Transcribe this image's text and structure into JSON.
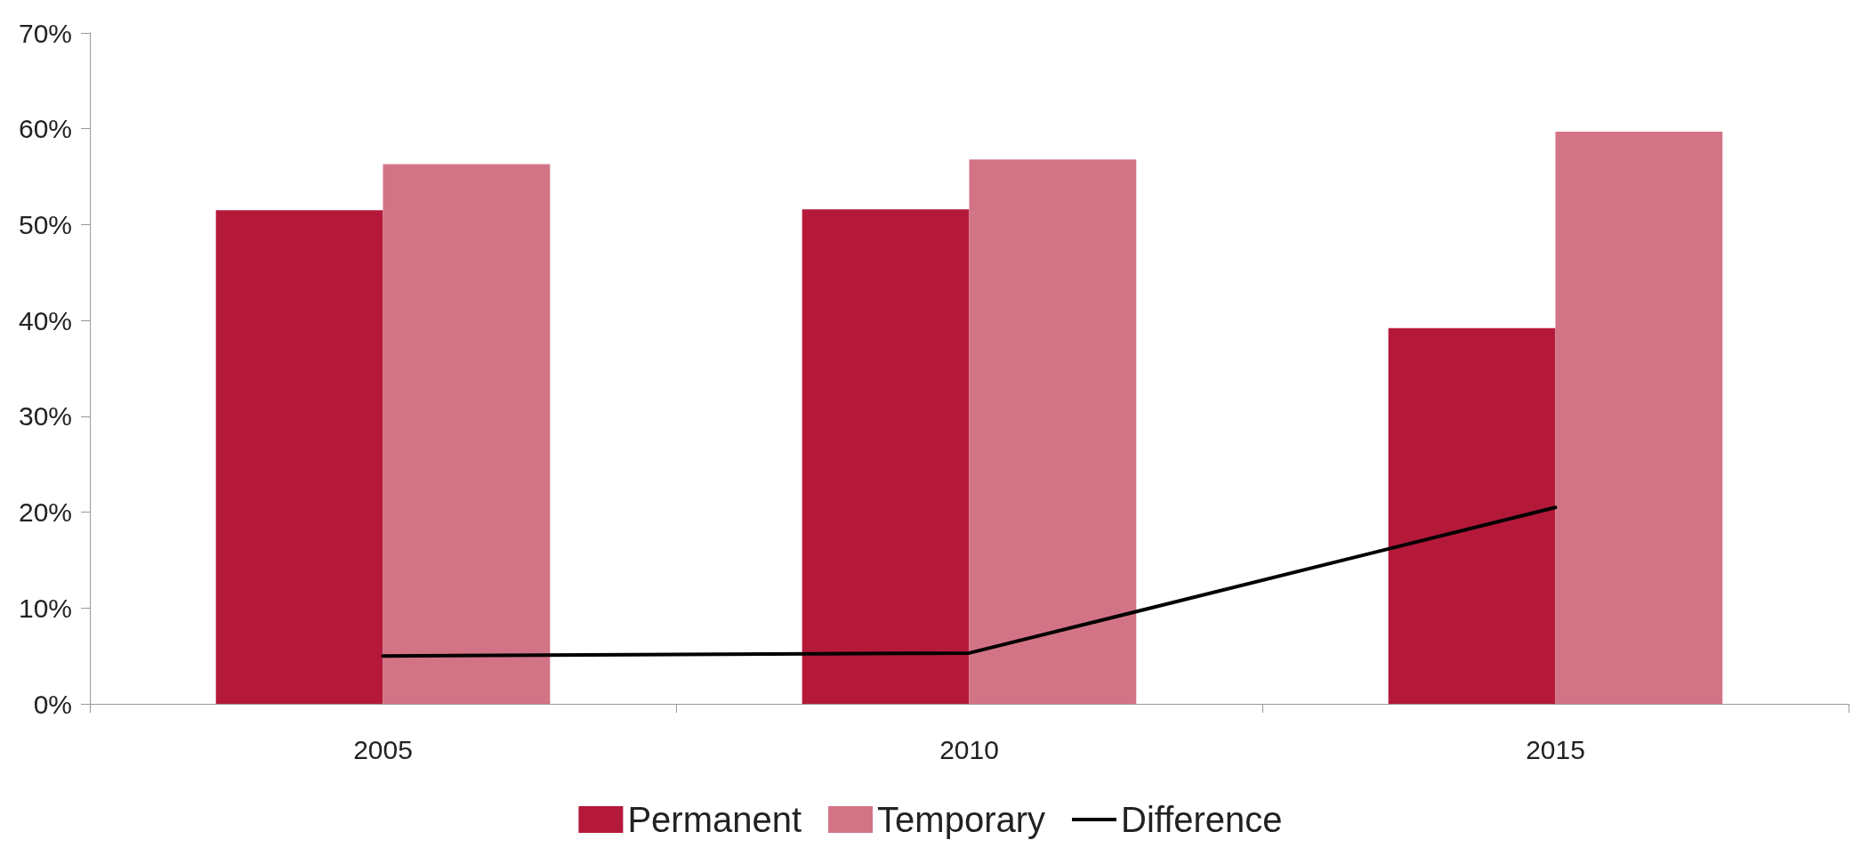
{
  "chart_data": {
    "type": "bar",
    "categories": [
      "2005",
      "2010",
      "2015"
    ],
    "series": [
      {
        "name": "Permanent",
        "color": "#b5193a",
        "values": [
          51.5,
          51.6,
          39.2
        ]
      },
      {
        "name": "Temporary",
        "color": "#d37486",
        "values": [
          56.3,
          56.8,
          59.7
        ]
      },
      {
        "name": "Difference",
        "type": "line",
        "color": "#000000",
        "values": [
          5.0,
          5.3,
          20.5
        ]
      }
    ],
    "ylim": [
      0,
      70
    ],
    "yticks": [
      {
        "value": 0,
        "label": "0%"
      },
      {
        "value": 10,
        "label": "10%"
      },
      {
        "value": 20,
        "label": "20%"
      },
      {
        "value": 30,
        "label": "30%"
      },
      {
        "value": 40,
        "label": "40%"
      },
      {
        "value": 50,
        "label": "50%"
      },
      {
        "value": 60,
        "label": "60%"
      },
      {
        "value": 70,
        "label": "70%"
      }
    ],
    "grid": false,
    "legend": "bottom",
    "marker": "none",
    "line_style": "solid"
  }
}
